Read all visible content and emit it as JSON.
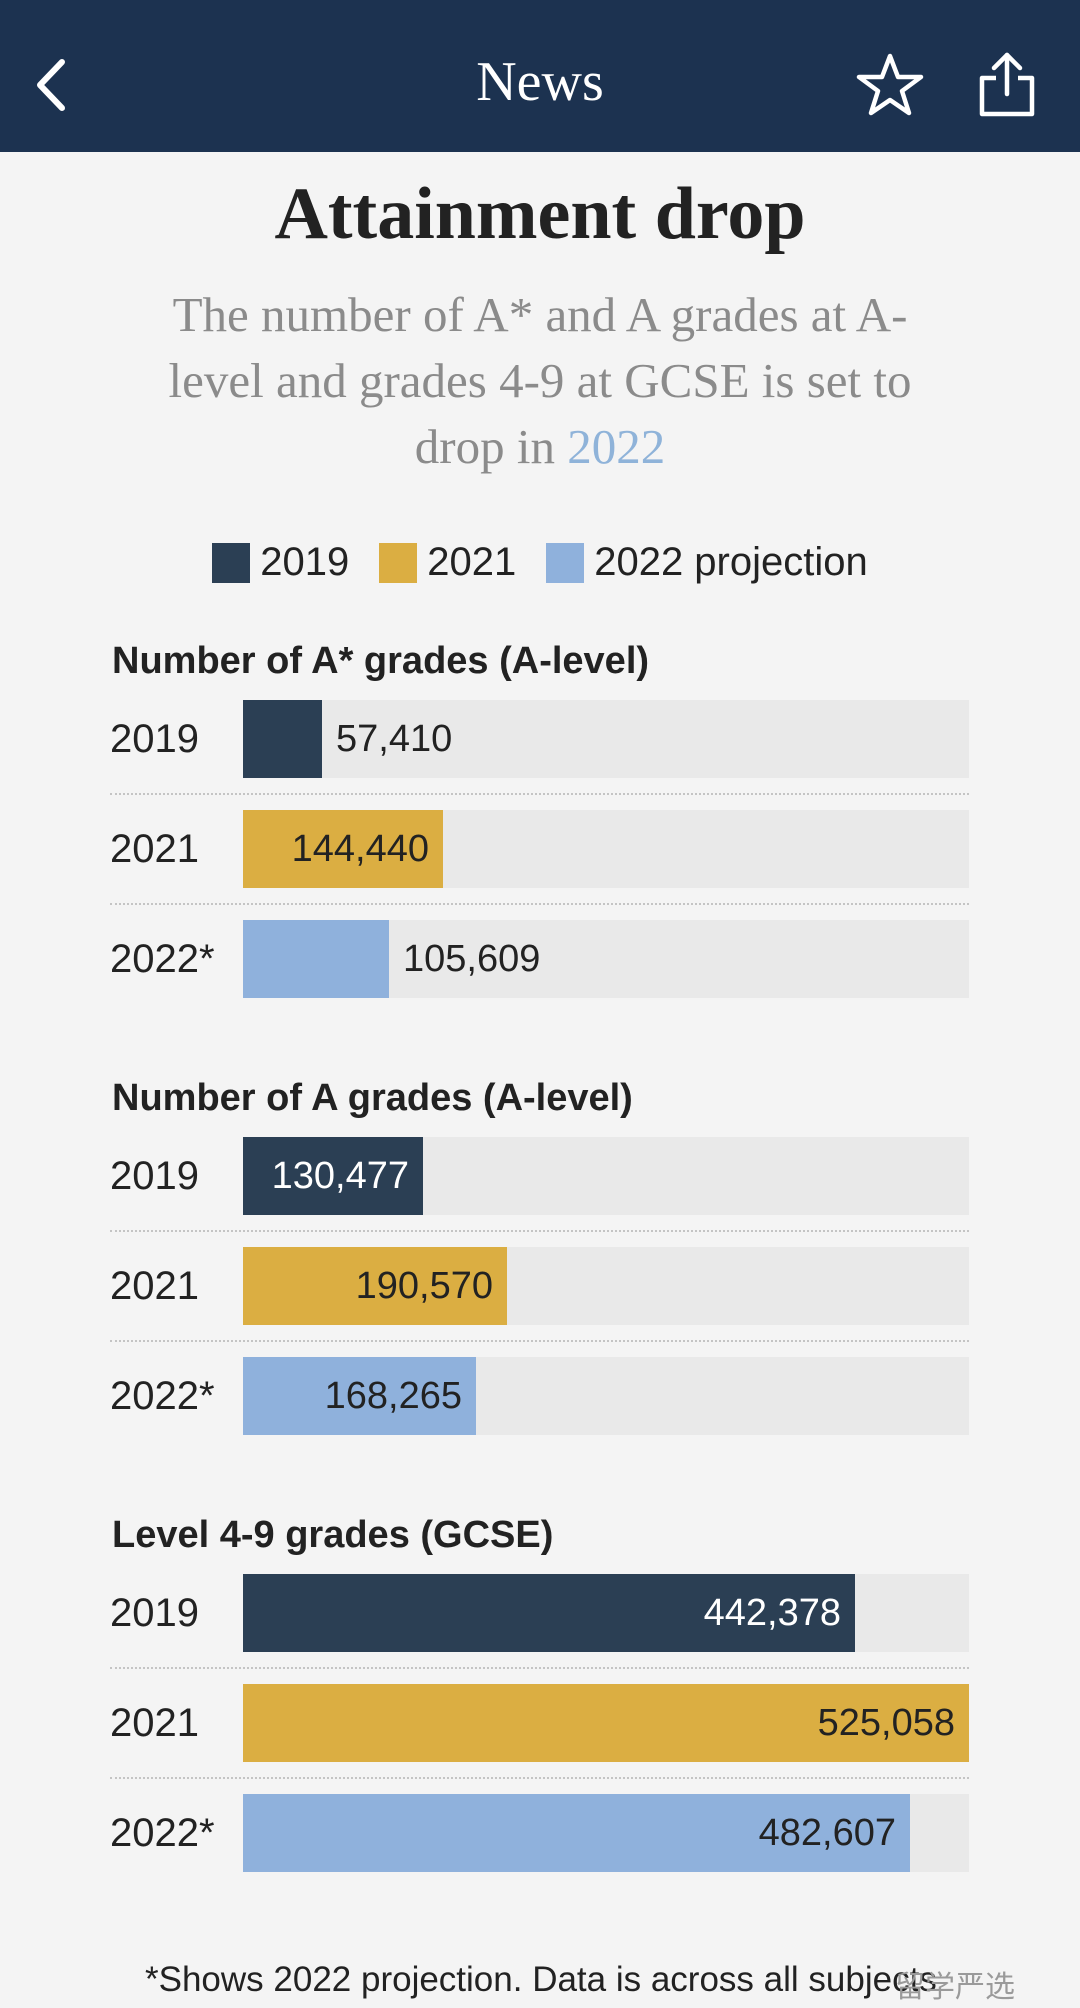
{
  "header": {
    "title": "News",
    "back_icon": "chevron-left-icon",
    "favorite_icon": "star-icon",
    "share_icon": "share-icon"
  },
  "colors": {
    "header_bg": "#1c3250",
    "s2019": "#2b3f54",
    "s2021": "#dbae42",
    "s2022": "#8fb1dc",
    "track": "#e9e9e9"
  },
  "chart_data": {
    "type": "bar",
    "title": "Attainment drop",
    "subtitle_part1": "The number of A* and A grades at A-level and grades 4-9 at GCSE is set to drop in ",
    "subtitle_highlight": "2022",
    "legend": [
      "2019",
      "2021",
      "2022 projection"
    ],
    "xlim": [
      0,
      525058
    ],
    "panels": [
      {
        "title": "Number of A* grades (A-level)",
        "categories": [
          "2019",
          "2021",
          "2022*"
        ],
        "values": [
          57410,
          144440,
          105609
        ],
        "labels": [
          "57,410",
          "144,440",
          "105,609"
        ]
      },
      {
        "title": "Number of A grades (A-level)",
        "categories": [
          "2019",
          "2021",
          "2022*"
        ],
        "values": [
          130477,
          190570,
          168265
        ],
        "labels": [
          "130,477",
          "190,570",
          "168,265"
        ]
      },
      {
        "title": "Level 4-9 grades (GCSE)",
        "categories": [
          "2019",
          "2021",
          "2022*"
        ],
        "values": [
          442378,
          525058,
          482607
        ],
        "labels": [
          "442,378",
          "525,058",
          "482,607"
        ]
      }
    ],
    "footnote": "*Shows 2022 projection. Data is across all subjects"
  },
  "watermark": "留学严选"
}
